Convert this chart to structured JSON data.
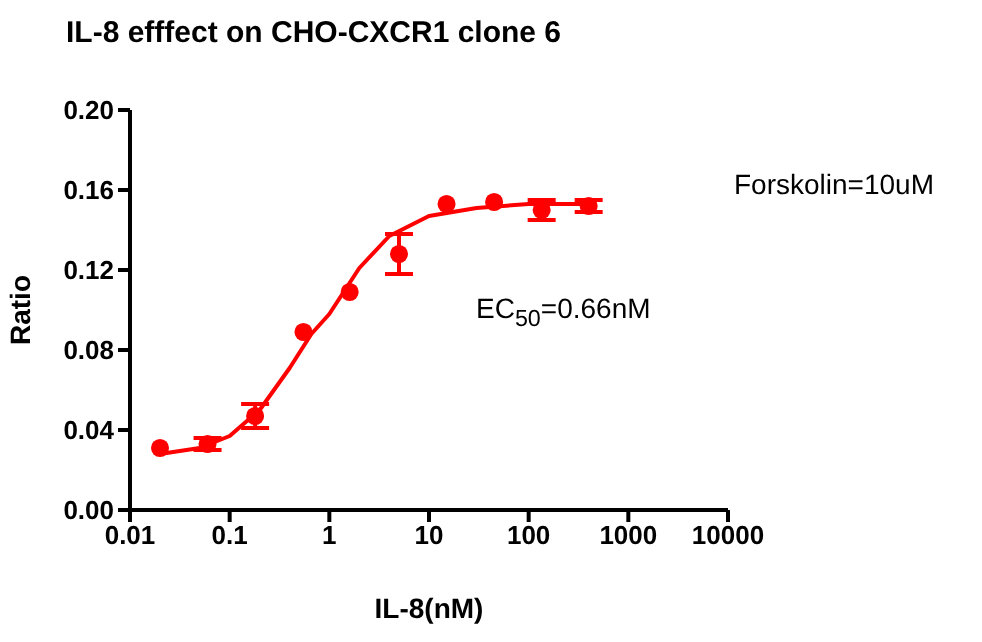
{
  "chart_data": {
    "type": "scatter",
    "title": "IL-8 efffect on CHO-CXCR1 clone 6",
    "xlabel": "IL-8(nM)",
    "ylabel": "Ratio",
    "annotations": [
      "EC$_{50}$=0.66nM",
      "Forskolin=10uM"
    ],
    "log": "x",
    "marker": "circle",
    "xlim": [
      0.01,
      10000
    ],
    "xticks": [
      0.01,
      0.1,
      1,
      10,
      100,
      1000,
      10000
    ],
    "ylim": [
      0,
      0.2
    ],
    "yticks": [
      {
        "value": 0,
        "label": "0.00"
      },
      0.04,
      0.08,
      0.12,
      0.16,
      {
        "value": 0.2,
        "label": "0.20"
      }
    ],
    "series": [
      {
        "color": "#ff0000",
        "x": [
          0.02,
          0.06,
          0.18,
          0.55,
          1.6,
          5,
          15,
          45,
          135,
          400
        ],
        "values": [
          0.031,
          0.033,
          0.047,
          0.089,
          0.109,
          0.128,
          0.153,
          0.154,
          0.15,
          0.152
        ],
        "errors": [
          null,
          0.003,
          0.006,
          null,
          null,
          0.01,
          null,
          null,
          0.005,
          0.003
        ]
      },
      {
        "type": "line",
        "color": "#ff0000",
        "marker": "none",
        "line_style": "solid",
        "x": [
          0.02,
          0.05,
          0.1,
          0.2,
          0.4,
          0.66,
          1,
          2,
          4,
          10,
          30,
          100,
          400
        ],
        "values": [
          0.028,
          0.031,
          0.037,
          0.05,
          0.071,
          0.088,
          0.098,
          0.121,
          0.137,
          0.147,
          0.151,
          0.153,
          0.153
        ]
      }
    ]
  }
}
